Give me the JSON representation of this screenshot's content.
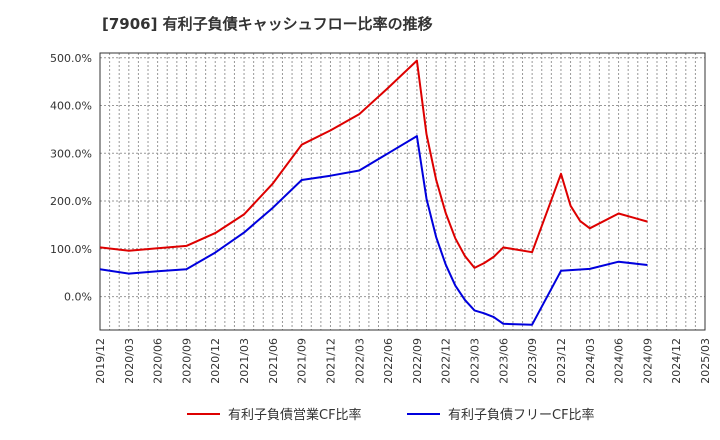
{
  "chart_data": {
    "type": "line",
    "title": "[7906]  有利子負債キャッシュフロー比率の推移",
    "xlabel": "",
    "ylabel": "",
    "ylim": [
      -70,
      510
    ],
    "y_ticks": [
      0,
      100,
      200,
      300,
      400,
      500
    ],
    "y_tick_labels": [
      "0.0%",
      "100.0%",
      "200.0%",
      "300.0%",
      "400.0%",
      "500.0%"
    ],
    "x_ticks": [
      "2019/12",
      "2020/03",
      "2020/06",
      "2020/09",
      "2020/12",
      "2021/03",
      "2021/06",
      "2021/09",
      "2021/12",
      "2022/03",
      "2022/06",
      "2022/09",
      "2022/12",
      "2023/03",
      "2023/06",
      "2023/09",
      "2023/12",
      "2024/03",
      "2024/06",
      "2024/09",
      "2024/12",
      "2025/03"
    ],
    "grid": true,
    "legend_position": "bottom",
    "series": [
      {
        "name": "有利子負債営業CF比率",
        "color": "#dd0000",
        "points": [
          [
            "2019/12",
            103
          ],
          [
            "2020/03",
            96
          ],
          [
            "2020/06",
            101
          ],
          [
            "2020/09",
            106
          ],
          [
            "2020/12",
            133
          ],
          [
            "2021/03",
            172
          ],
          [
            "2021/06",
            237
          ],
          [
            "2021/09",
            318
          ],
          [
            "2021/12",
            348
          ],
          [
            "2022/03",
            382
          ],
          [
            "2022/06",
            437
          ],
          [
            "2022/09",
            494
          ],
          [
            "2022/10",
            340
          ],
          [
            "2022/11",
            245
          ],
          [
            "2022/12",
            175
          ],
          [
            "2023/01",
            122
          ],
          [
            "2023/02",
            85
          ],
          [
            "2023/03",
            60
          ],
          [
            "2023/04",
            70
          ],
          [
            "2023/05",
            83
          ],
          [
            "2023/06",
            103
          ],
          [
            "2023/09",
            93
          ],
          [
            "2023/12",
            257
          ],
          [
            "2024/01",
            190
          ],
          [
            "2024/02",
            158
          ],
          [
            "2024/03",
            143
          ],
          [
            "2024/06",
            174
          ],
          [
            "2024/09",
            157
          ]
        ]
      },
      {
        "name": "有利子負債フリーCF比率",
        "color": "#0000dd",
        "points": [
          [
            "2019/12",
            57
          ],
          [
            "2020/03",
            48
          ],
          [
            "2020/06",
            53
          ],
          [
            "2020/09",
            57
          ],
          [
            "2020/12",
            92
          ],
          [
            "2021/03",
            134
          ],
          [
            "2021/06",
            186
          ],
          [
            "2021/09",
            244
          ],
          [
            "2021/12",
            253
          ],
          [
            "2022/03",
            264
          ],
          [
            "2022/06",
            300
          ],
          [
            "2022/09",
            336
          ],
          [
            "2022/10",
            205
          ],
          [
            "2022/11",
            125
          ],
          [
            "2022/12",
            67
          ],
          [
            "2023/01",
            23
          ],
          [
            "2023/02",
            -7
          ],
          [
            "2023/03",
            -29
          ],
          [
            "2023/04",
            -35
          ],
          [
            "2023/05",
            -43
          ],
          [
            "2023/06",
            -57
          ],
          [
            "2023/09",
            -59
          ],
          [
            "2023/12",
            54
          ],
          [
            "2024/03",
            58
          ],
          [
            "2024/06",
            73
          ],
          [
            "2024/09",
            66
          ]
        ]
      }
    ]
  }
}
